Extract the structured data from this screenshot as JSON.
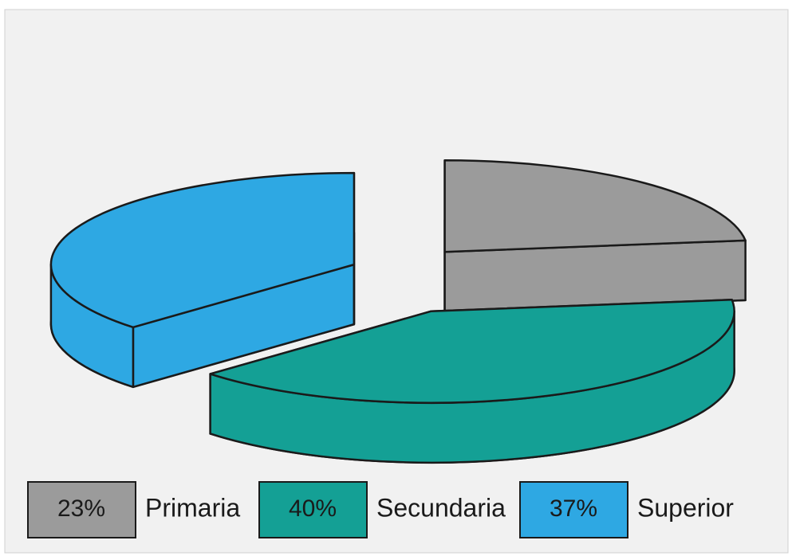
{
  "chart_data": {
    "type": "pie",
    "categories": [
      "Primaria",
      "Secundaria",
      "Superior"
    ],
    "values": [
      23,
      40,
      37
    ],
    "value_labels": [
      "23%",
      "40%",
      "37%"
    ],
    "colors": [
      "#9b9b9b",
      "#14a095",
      "#2ea8e3"
    ],
    "legend": "bottom"
  }
}
